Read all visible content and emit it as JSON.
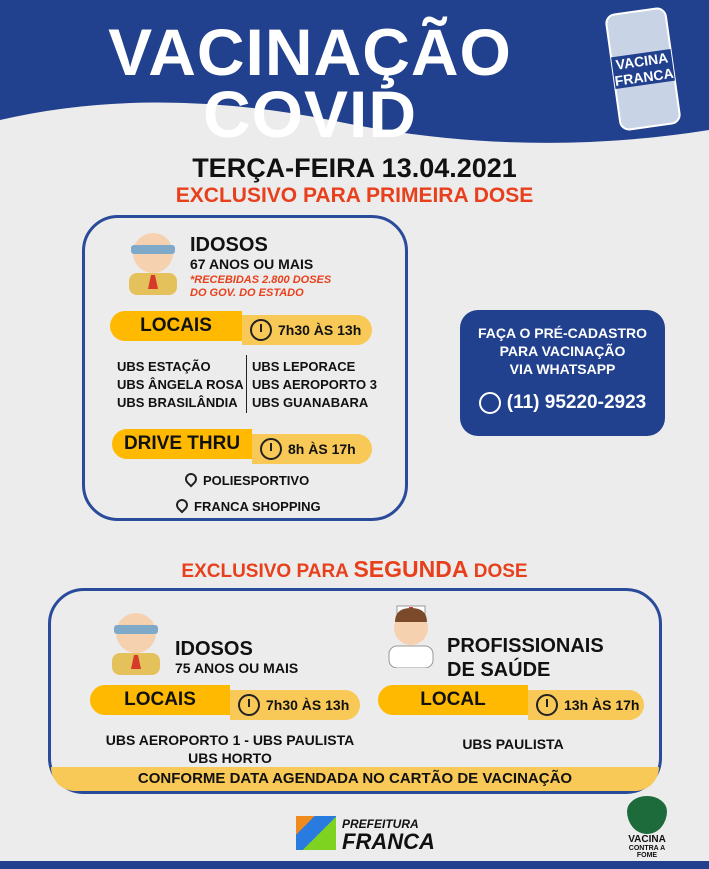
{
  "header": {
    "title1": "VACINAÇÃO",
    "title2": "COVID",
    "badge": "VACINA FRANCA",
    "bg": "#21408e"
  },
  "date": "TERÇA-FEIRA 13.04.2021",
  "first": {
    "heading": "EXCLUSIVO PARA PRIMEIRA DOSE",
    "group": "IDOSOS",
    "age": "67 ANOS OU MAIS",
    "note1": "*RECEBIDAS 2.800 DOSES",
    "note2": "DO GOV. DO ESTADO",
    "locais_label": "LOCAIS",
    "locais_time": "7h30 ÀS 13h",
    "col1": [
      "UBS ESTAÇÃO",
      "UBS ÂNGELA ROSA",
      "UBS BRASILÂNDIA"
    ],
    "col2": [
      "UBS LEPORACE",
      "UBS AEROPORTO 3",
      "UBS GUANABARA"
    ],
    "drive_label": "DRIVE THRU",
    "drive_time": "8h ÀS 17h",
    "drive_places": [
      "POLIESPORTIVO",
      "FRANCA SHOPPING"
    ]
  },
  "whatsapp": {
    "line1": "FAÇA O PRÉ-CADASTRO",
    "line2": "PARA VACINAÇÃO",
    "line3": "VIA WHATSAPP",
    "phone": "(11) 95220-2923"
  },
  "second": {
    "heading_a": "EXCLUSIVO PARA ",
    "heading_b": "SEGUNDA",
    "heading_c": " DOSE",
    "left": {
      "group": "IDOSOS",
      "age": "75 ANOS OU MAIS",
      "label": "LOCAIS",
      "time": "7h30 ÀS 13h",
      "places1": "UBS AEROPORTO 1 - UBS PAULISTA",
      "places2": "UBS HORTO"
    },
    "right": {
      "group1": "PROFISSIONAIS",
      "group2": "DE SAÚDE",
      "label": "LOCAL",
      "time": "13h ÀS 17h",
      "places": "UBS PAULISTA"
    },
    "footer": "CONFORME DATA AGENDADA NO CARTÃO DE VACINAÇÃO"
  },
  "logos": {
    "prefeitura1": "PREFEITURA",
    "prefeitura2": "FRANCA",
    "vacina1": "VACINA",
    "vacina2": "CONTRA A FOME"
  },
  "colors": {
    "blue": "#21408e",
    "yellow": "#ffb900",
    "red": "#e8401c"
  }
}
